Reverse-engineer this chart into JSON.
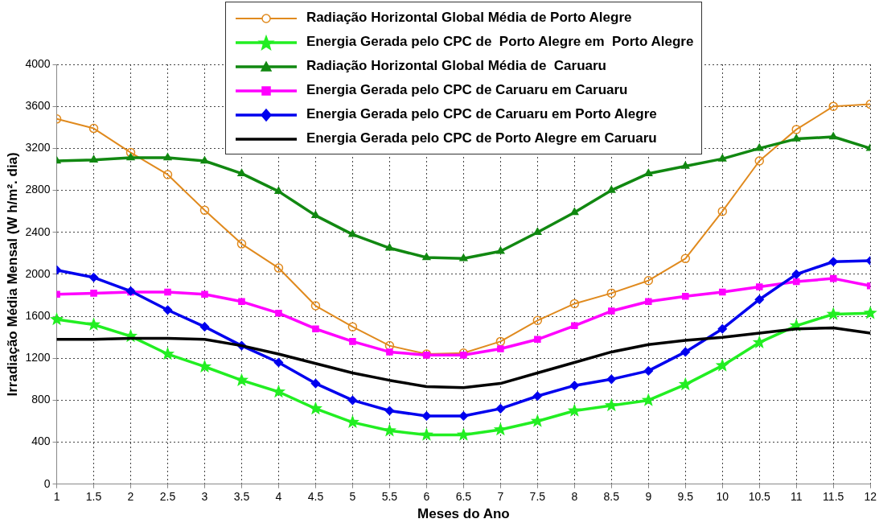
{
  "chart_data": {
    "type": "line",
    "xlabel": "Meses do Ano",
    "ylabel": "Irradiação Média Mensal (W h/m². dia)",
    "x": [
      1,
      1.5,
      2,
      2.5,
      3,
      3.5,
      4,
      4.5,
      5,
      5.5,
      6,
      6.5,
      7,
      7.5,
      8,
      8.5,
      9,
      9.5,
      10,
      10.5,
      11,
      11.5,
      12
    ],
    "xlim": [
      1,
      12
    ],
    "xticks": [
      1,
      1.5,
      2,
      2.5,
      3,
      3.5,
      4,
      4.5,
      5,
      5.5,
      6,
      6.5,
      7,
      7.5,
      8,
      8.5,
      9,
      9.5,
      10,
      10.5,
      11,
      11.5,
      12
    ],
    "ylim": [
      0,
      4000
    ],
    "yticks": [
      0,
      400,
      800,
      1200,
      1600,
      2000,
      2400,
      2800,
      3200,
      3600,
      4000
    ],
    "grid": true,
    "legend": "top",
    "line_style": "solid",
    "series": [
      {
        "name": "Radiação Horizontal Global Média de Porto Alegre",
        "color": "#e08a1e",
        "marker": "circle",
        "values": [
          3480,
          3390,
          3160,
          2950,
          2610,
          2290,
          2060,
          1700,
          1500,
          1320,
          1240,
          1250,
          1360,
          1560,
          1720,
          1820,
          1940,
          2150,
          2600,
          3080,
          3380,
          3600,
          3620
        ]
      },
      {
        "name": "Energia Gerada pelo CPC de  Porto Alegre em  Porto Alegre",
        "color": "#22ee22",
        "marker": "star",
        "values": [
          1570,
          1520,
          1410,
          1240,
          1120,
          990,
          880,
          720,
          590,
          510,
          470,
          470,
          520,
          600,
          700,
          750,
          800,
          950,
          1130,
          1350,
          1510,
          1620,
          1630
        ]
      },
      {
        "name": "Radiação Horizontal Global Média de  Caruaru",
        "color": "#118811",
        "marker": "triangle",
        "values": [
          3080,
          3090,
          3110,
          3110,
          3080,
          2960,
          2790,
          2560,
          2380,
          2250,
          2160,
          2150,
          2220,
          2400,
          2590,
          2800,
          2960,
          3030,
          3100,
          3200,
          3290,
          3310,
          3200
        ]
      },
      {
        "name": "Energia Gerada pelo CPC de Caruaru em Caruaru",
        "color": "#ff00ff",
        "marker": "square",
        "values": [
          1810,
          1820,
          1830,
          1830,
          1810,
          1740,
          1630,
          1480,
          1360,
          1260,
          1230,
          1230,
          1290,
          1380,
          1510,
          1650,
          1740,
          1790,
          1830,
          1880,
          1930,
          1960,
          1890
        ]
      },
      {
        "name": "Energia Gerada pelo CPC de Caruaru em Porto Alegre",
        "color": "#0000ee",
        "marker": "diamond",
        "values": [
          2040,
          1970,
          1840,
          1660,
          1500,
          1320,
          1160,
          960,
          800,
          700,
          650,
          650,
          720,
          840,
          940,
          1000,
          1080,
          1260,
          1480,
          1760,
          2000,
          2120,
          2130
        ]
      },
      {
        "name": "Energia Gerada pelo CPC de Porto Alegre em Caruaru",
        "color": "#000000",
        "marker": "none",
        "values": [
          1380,
          1380,
          1390,
          1390,
          1380,
          1320,
          1240,
          1150,
          1060,
          990,
          930,
          920,
          960,
          1060,
          1160,
          1260,
          1330,
          1370,
          1400,
          1440,
          1480,
          1490,
          1440
        ]
      }
    ]
  }
}
